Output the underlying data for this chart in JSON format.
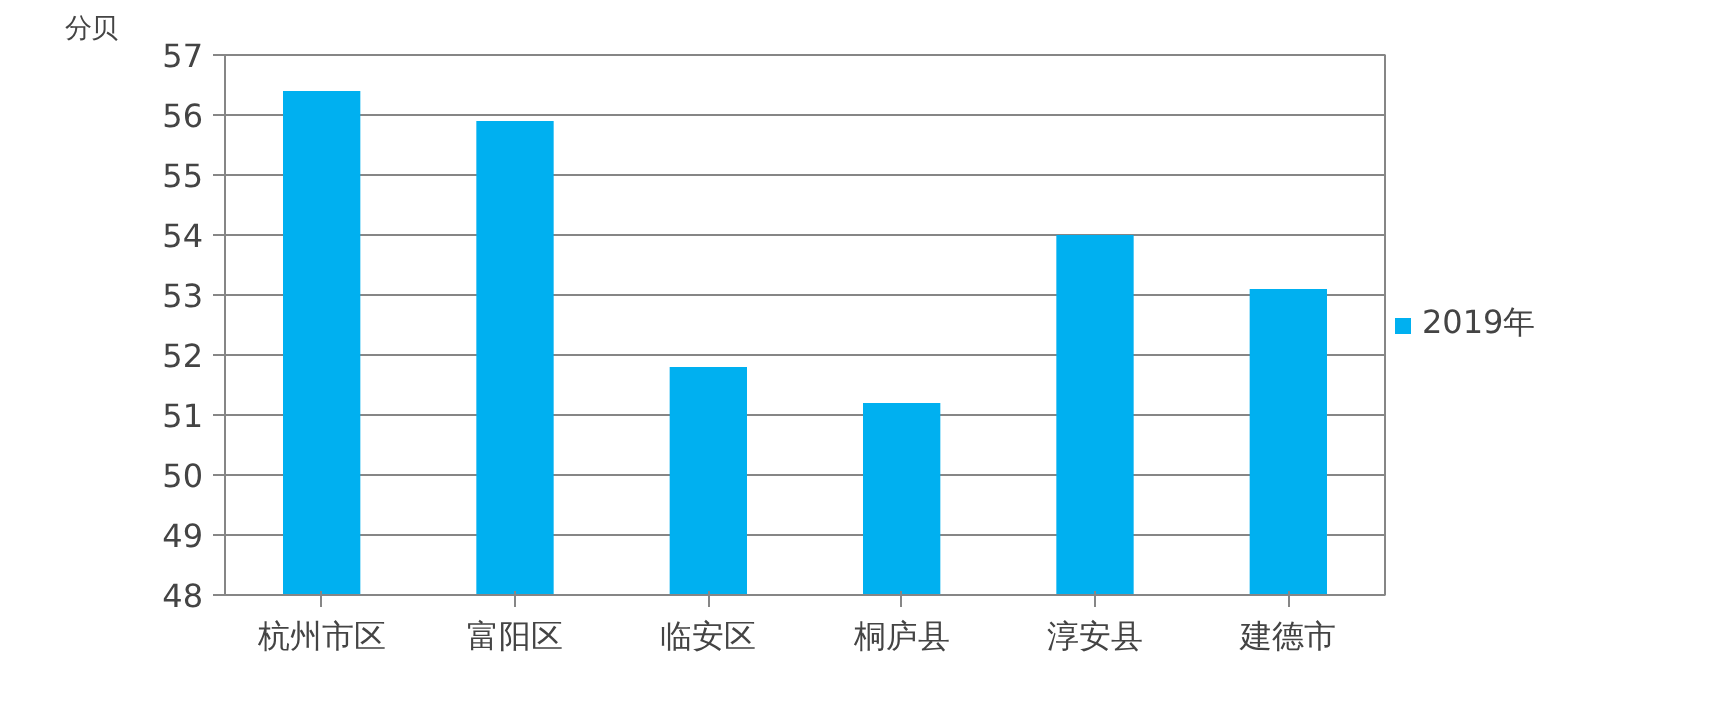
{
  "chart_data": {
    "type": "bar",
    "ylabel": "分贝",
    "categories": [
      "杭州市区",
      "富阳区",
      "临安区",
      "桐庐县",
      "淳安县",
      "建德市"
    ],
    "series": [
      {
        "name": "2019年",
        "color": "#00b0f0",
        "values": [
          56.4,
          55.9,
          51.8,
          51.2,
          54.0,
          53.1
        ]
      }
    ],
    "ylim": [
      48,
      57
    ],
    "yticks": [
      48,
      49,
      50,
      51,
      52,
      53,
      54,
      55,
      56,
      57
    ],
    "grid": "y",
    "legend": "right"
  }
}
